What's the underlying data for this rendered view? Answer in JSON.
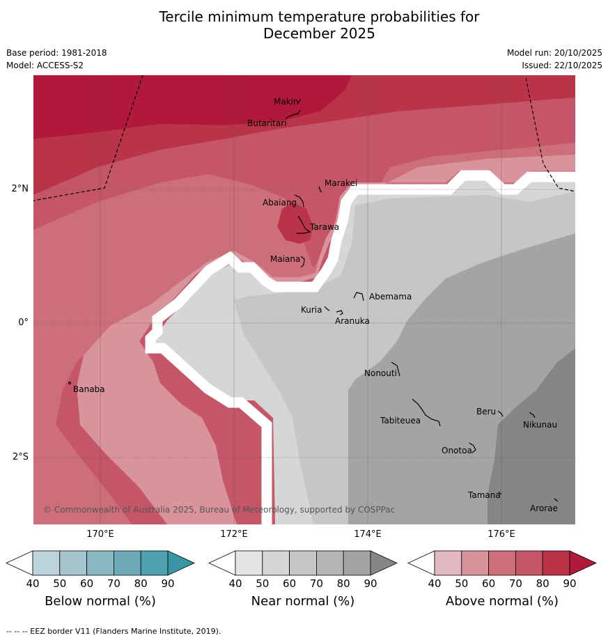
{
  "title_line1": "Tercile minimum temperature probabilities for",
  "title_line2": "December 2025",
  "base_period": "Base period: 1981-2018",
  "model": "Model: ACCESS-S2",
  "model_run": "Model run: 20/10/2025",
  "issued": "Issued: 22/10/2025",
  "axes": {
    "lon_labels": [
      "170°E",
      "172°E",
      "174°E",
      "176°E"
    ],
    "lat_labels": [
      "2°N",
      "0°",
      "2°S"
    ]
  },
  "places": {
    "makin": "Makin",
    "butaritari": "Butaritari",
    "marakei": "Marakei",
    "abaiang": "Abaiang",
    "tarawa": "Tarawa",
    "maiana": "Maiana",
    "abemama": "Abemama",
    "kuria": "Kuria",
    "aranuka": "Aranuka",
    "nonouti": "Nonouti",
    "banaba": "Banaba",
    "beru": "Beru",
    "nikunau": "Nikunau",
    "tabiteuea": "Tabiteuea",
    "onotoa": "Onotoa",
    "tamana": "Tamana",
    "arorae": "Arorae"
  },
  "copyright": "© Commonwealth of Australia 2025, Bureau of Meteorology, supported by COSPPac",
  "colorbars": [
    {
      "title": "Below normal (%)",
      "ticks": [
        "40",
        "50",
        "60",
        "70",
        "80",
        "90"
      ],
      "colors": [
        "#bcd3dc",
        "#a6c6ce",
        "#8bb7c3",
        "#6eaab8",
        "#4da0ae",
        "#3896a6"
      ]
    },
    {
      "title": "Near normal (%)",
      "ticks": [
        "40",
        "50",
        "60",
        "70",
        "80",
        "90"
      ],
      "colors": [
        "#e5e5e5",
        "#d6d6d6",
        "#c6c6c6",
        "#b4b4b4",
        "#a4a4a4",
        "#868686"
      ]
    },
    {
      "title": "Above normal (%)",
      "ticks": [
        "40",
        "50",
        "60",
        "70",
        "80",
        "90"
      ],
      "colors": [
        "#e2b8c0",
        "#d9939c",
        "#cd6f7a",
        "#c45667",
        "#b93448",
        "#b0193a"
      ]
    }
  ],
  "footnote": "--  --  -- EEZ border V11 (Flanders Marine Institute, 2019)."
}
